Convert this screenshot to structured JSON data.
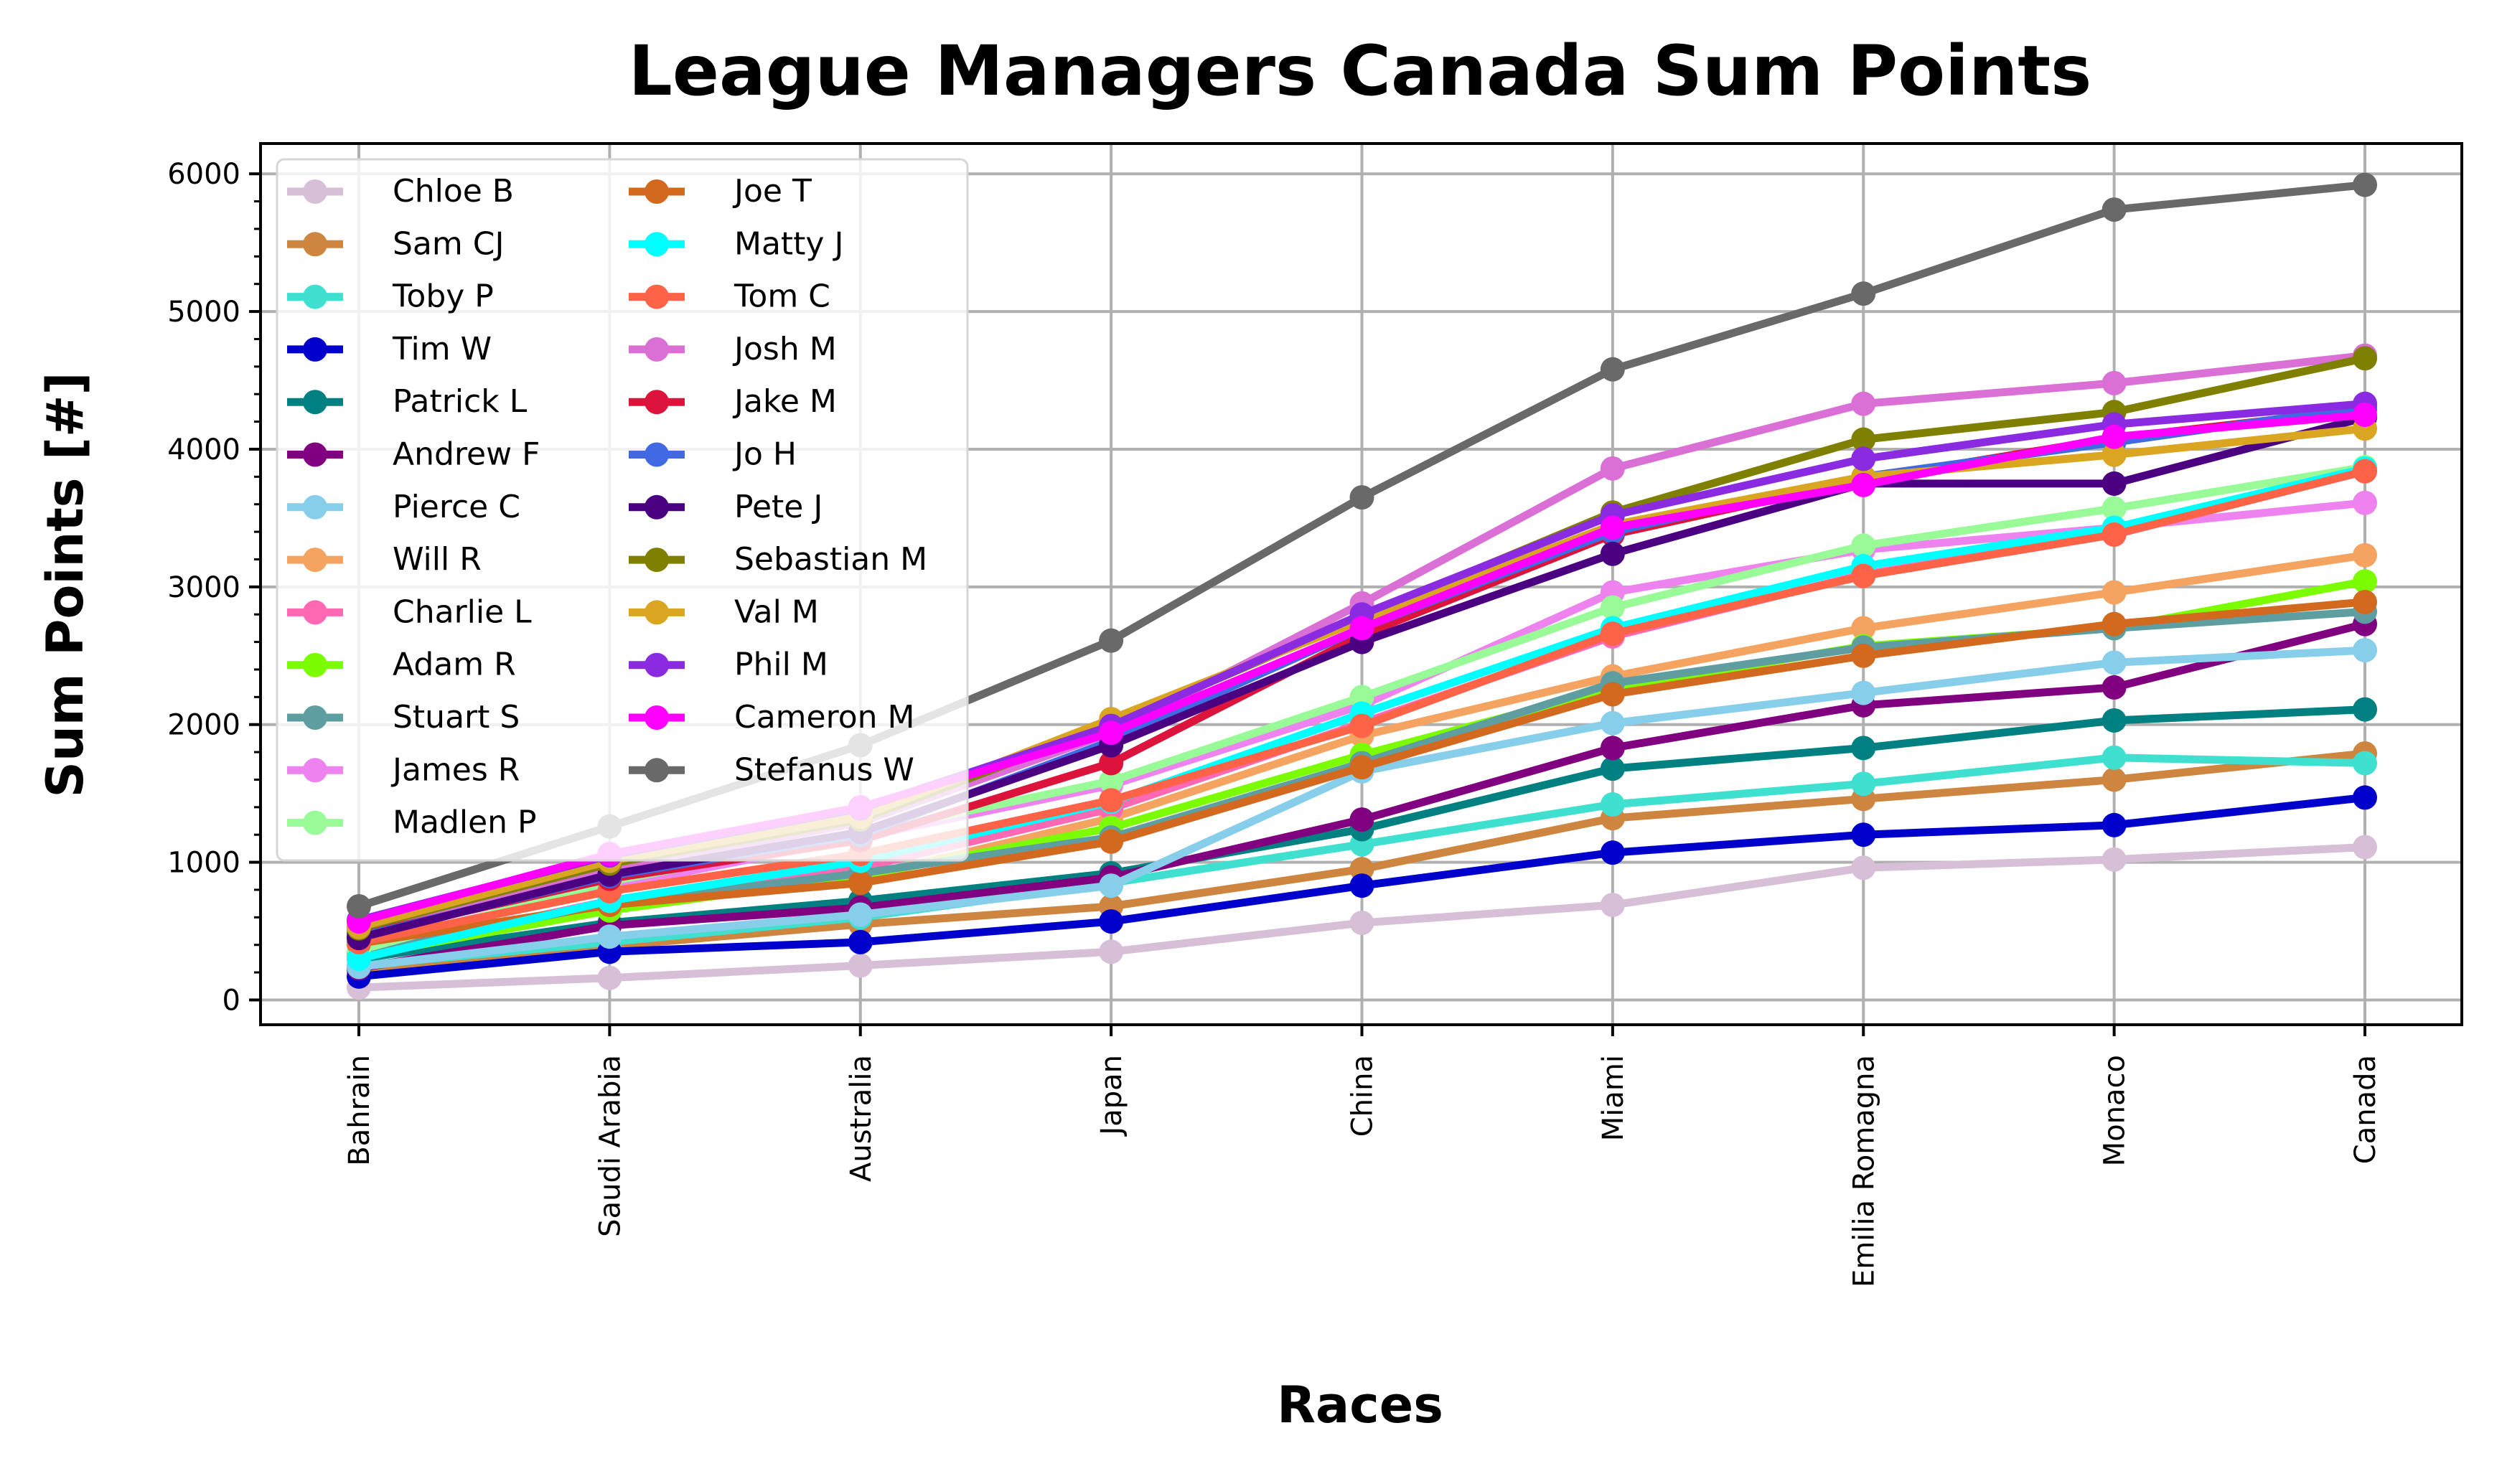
{
  "chart_data": {
    "type": "line",
    "title": "League Managers Canada Sum Points",
    "xlabel": "Races",
    "ylabel": "Sum Points [#]",
    "categories": [
      "Bahrain",
      "Saudi Arabia",
      "Australia",
      "Japan",
      "China",
      "Miami",
      "Emilia Romagna",
      "Monaco",
      "Canada"
    ],
    "yticks": [
      0,
      1000,
      2000,
      3000,
      4000,
      5000,
      6000
    ],
    "ylim": [
      -180,
      6220
    ],
    "grid": true,
    "legend": {
      "position": "top-left",
      "columns": 2
    },
    "series": [
      {
        "name": "Chloe B",
        "color": "#d8bfd8",
        "values": [
          90,
          160,
          250,
          350,
          560,
          690,
          960,
          1020,
          1110
        ]
      },
      {
        "name": "Sam CJ",
        "color": "#cd853f",
        "values": [
          210,
          390,
          550,
          680,
          950,
          1320,
          1460,
          1600,
          1790
        ]
      },
      {
        "name": "Toby P",
        "color": "#40e0d0",
        "values": [
          250,
          420,
          600,
          850,
          1130,
          1420,
          1570,
          1760,
          1720
        ]
      },
      {
        "name": "Tim W",
        "color": "#0000cd",
        "values": [
          170,
          350,
          420,
          570,
          830,
          1070,
          1200,
          1270,
          1470
        ]
      },
      {
        "name": "Patrick L",
        "color": "#008080",
        "values": [
          300,
          560,
          720,
          920,
          1240,
          1680,
          1830,
          2030,
          2110
        ]
      },
      {
        "name": "Andrew F",
        "color": "#800080",
        "values": [
          230,
          540,
          670,
          890,
          1310,
          1830,
          2140,
          2270,
          2730
        ]
      },
      {
        "name": "Pierce C",
        "color": "#87ceeb",
        "values": [
          240,
          460,
          620,
          830,
          1660,
          2010,
          2230,
          2450,
          2540
        ]
      },
      {
        "name": "Will R",
        "color": "#f4a460",
        "values": [
          310,
          680,
          890,
          1320,
          1920,
          2350,
          2700,
          2960,
          3230
        ]
      },
      {
        "name": "Charlie L",
        "color": "#ff69b4",
        "values": [
          330,
          720,
          960,
          1390,
          2010,
          2640,
          3090,
          3380,
          3840
        ]
      },
      {
        "name": "Adam R",
        "color": "#7cfc00",
        "values": [
          320,
          650,
          900,
          1250,
          1780,
          2260,
          2570,
          2700,
          3040
        ]
      },
      {
        "name": "Stuart S",
        "color": "#5f9ea0",
        "values": [
          350,
          700,
          920,
          1180,
          1720,
          2300,
          2560,
          2700,
          2820
        ]
      },
      {
        "name": "James R",
        "color": "#ee82ee",
        "values": [
          400,
          820,
          1180,
          1560,
          2140,
          2960,
          3270,
          3430,
          3610
        ]
      },
      {
        "name": "Madlen P",
        "color": "#98fb98",
        "values": [
          360,
          860,
          1210,
          1590,
          2200,
          2850,
          3300,
          3570,
          3870
        ]
      },
      {
        "name": "Joe T",
        "color": "#d2691e",
        "values": [
          410,
          690,
          850,
          1150,
          1690,
          2220,
          2500,
          2730,
          2890
        ]
      },
      {
        "name": "Matty J",
        "color": "#00ffff",
        "values": [
          300,
          720,
          1010,
          1440,
          2080,
          2700,
          3150,
          3430,
          3860
        ]
      },
      {
        "name": "Tom C",
        "color": "#ff6347",
        "values": [
          420,
          790,
          1060,
          1450,
          1990,
          2660,
          3080,
          3380,
          3840
        ]
      },
      {
        "name": "Josh M",
        "color": "#da70d6",
        "values": [
          490,
          940,
          1290,
          1940,
          2880,
          3860,
          4330,
          4480,
          4680
        ]
      },
      {
        "name": "Jake M",
        "color": "#dc143c",
        "values": [
          470,
          880,
          1160,
          1720,
          2650,
          3380,
          3780,
          4080,
          4290
        ]
      },
      {
        "name": "Jo H",
        "color": "#4169e1",
        "values": [
          460,
          900,
          1200,
          1880,
          2700,
          3400,
          3800,
          4050,
          4310
        ]
      },
      {
        "name": "Pete J",
        "color": "#4b0082",
        "values": [
          450,
          910,
          1220,
          1850,
          2600,
          3240,
          3750,
          3750,
          4230
        ]
      },
      {
        "name": "Sebastian M",
        "color": "#808000",
        "values": [
          520,
          990,
          1310,
          2000,
          2780,
          3540,
          4070,
          4270,
          4660
        ]
      },
      {
        "name": "Val M",
        "color": "#daa520",
        "values": [
          530,
          1010,
          1330,
          2040,
          2760,
          3450,
          3800,
          3960,
          4150
        ]
      },
      {
        "name": "Phil M",
        "color": "#8a2be2",
        "values": [
          580,
          1050,
          1390,
          1990,
          2800,
          3520,
          3930,
          4180,
          4330
        ]
      },
      {
        "name": "Cameron M",
        "color": "#ff00ff",
        "values": [
          570,
          1060,
          1400,
          1940,
          2700,
          3430,
          3740,
          4090,
          4250
        ]
      },
      {
        "name": "Stefanus W",
        "color": "#696969",
        "values": [
          680,
          1260,
          1850,
          2610,
          3650,
          4580,
          5130,
          5740,
          5920
        ]
      }
    ]
  }
}
